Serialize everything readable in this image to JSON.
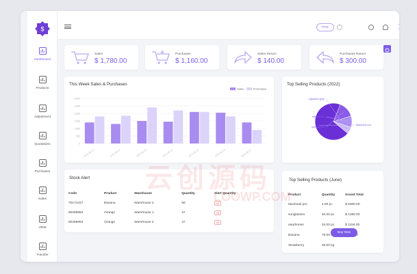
{
  "sidebar": {
    "items": [
      {
        "label": "Dashboard",
        "icon": "dashboard-icon"
      },
      {
        "label": "Products",
        "icon": "products-icon"
      },
      {
        "label": "Adjustment",
        "icon": "adjustment-icon"
      },
      {
        "label": "Quotations",
        "icon": "quotations-icon"
      },
      {
        "label": "Purchases",
        "icon": "purchases-icon"
      },
      {
        "label": "Sales",
        "icon": "sales-icon"
      },
      {
        "label": "HRM",
        "icon": "hrm-icon"
      },
      {
        "label": "Transfer",
        "icon": "transfer-icon"
      }
    ]
  },
  "topbar": {
    "pos_label": "POS",
    "notification_count": "1"
  },
  "stats": [
    {
      "label": "Sales",
      "value": "$ 1,780.00",
      "icon": "cart-icon"
    },
    {
      "label": "Purchases",
      "value": "$ 1,160.00",
      "icon": "cart-add-icon"
    },
    {
      "label": "Sales Return",
      "value": "$ 140.00",
      "icon": "arrow-forward-icon"
    },
    {
      "label": "Purchases Return",
      "value": "$ 300.00",
      "icon": "arrow-back-icon"
    }
  ],
  "weekly_chart": {
    "title": "This Week Sales & Purchases",
    "legend": [
      "Sales",
      "Purchases"
    ]
  },
  "top_products_chart": {
    "title": "Top Selling Products (2022)"
  },
  "stock_alert": {
    "title": "Stock Alert",
    "columns": [
      "Code",
      "Product",
      "Warehouse",
      "Quantity",
      "Alert Quantity"
    ],
    "rows": [
      [
        "70171027",
        "Banana",
        "Warehouse 2",
        "50",
        "10"
      ],
      [
        "80259894",
        "Orange",
        "Warehouse 1",
        "47",
        "10"
      ],
      [
        "80259894",
        "Orange",
        "Warehouse 2",
        "47",
        "10"
      ]
    ]
  },
  "top_june": {
    "title": "Top Selling Products (June)",
    "columns": [
      "Product",
      "Quantity",
      "Grand Total"
    ],
    "rows": [
      [
        "Macbook pro",
        "4.00 pc",
        "$ 6000.00"
      ],
      [
        "sunglasses",
        "40.00 pc",
        "$ 1360.00"
      ],
      [
        "earphones",
        "34.00 pc",
        "$ 1156.00"
      ],
      [
        "Banana",
        "78.00 kg",
        "$ 546.00"
      ],
      [
        "Strawberry",
        "48.00 kg",
        ""
      ]
    ],
    "buy_now": "Buy Now"
  },
  "watermark": {
    "text": "云创源码",
    "sub": "LOOWP.COM"
  },
  "colors": {
    "accent": "#7c5ce6",
    "accent_light": "#d8d0fa",
    "alert": "#e05050"
  },
  "chart_data": [
    {
      "type": "bar",
      "title": "This Week Sales & Purchases",
      "categories": [
        "2022-06-21",
        "2022-06-22",
        "2022-06-23",
        "2022-06-24",
        "2022-06-25",
        "2022-06-26",
        "2022-06-27"
      ],
      "ylim": [
        0,
        3000
      ],
      "yticks": [
        "3,000",
        "2,500",
        "2,000",
        "1,500",
        "1,000",
        "500",
        "0"
      ],
      "series": [
        {
          "name": "Sales",
          "values": [
            1400,
            1300,
            1500,
            1450,
            2100,
            2050,
            1400
          ]
        },
        {
          "name": "Purchases",
          "values": [
            1800,
            1850,
            2400,
            2200,
            2100,
            1800,
            900
          ]
        }
      ],
      "legend": "top-right"
    },
    {
      "type": "pie",
      "title": "Top Selling Products (2022)",
      "labels": [
        "Macbook pro",
        "sunglasses",
        "earphones",
        "adjusted grey"
      ],
      "values": [
        70,
        14,
        10,
        6
      ]
    }
  ]
}
